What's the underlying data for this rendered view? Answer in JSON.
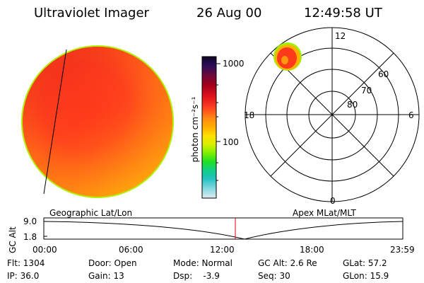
{
  "header": {
    "instrument": "Ultraviolet Imager",
    "date": "26 Aug 00",
    "time": "12:49:58 UT"
  },
  "colorbar": {
    "unit_label": "photon cm⁻²s⁻¹",
    "tick_labels": [
      "1000",
      "100"
    ],
    "gradient_colors": [
      "#0b0420",
      "#2b0b5a",
      "#6a0a3a",
      "#a0001a",
      "#e0101c",
      "#ff4020",
      "#ff8c10",
      "#ffb000",
      "#ffe000",
      "#d8f000",
      "#80f000",
      "#20e020",
      "#10d080",
      "#20c0c0",
      "#80d8e0",
      "#e0ecf0"
    ]
  },
  "polar_plot": {
    "mlt_labels": {
      "top": "12",
      "left": "18",
      "right": "6",
      "bottom": "0"
    },
    "lat_labels": [
      "60",
      "70",
      "80"
    ]
  },
  "timeline": {
    "left_title": "Geographic Lat/Lon",
    "right_title": "Apex MLat/MLT",
    "axis_label": "GC Alt",
    "y_ticks": [
      "9.0",
      "1.8"
    ],
    "x_ticks": [
      "00:00",
      "06:00",
      "12:00",
      "18:00",
      "23:59"
    ],
    "current_marker_color": "#e00000"
  },
  "info": {
    "row1": {
      "flt": "Flt: 1304",
      "door": "Door: Open",
      "mode": "Mode: Normal",
      "gcalt": "GC Alt: 2.6 Re",
      "glat": "GLat: 57.2"
    },
    "row2": {
      "ip": "IP: 36.0",
      "gain": "Gain: 13",
      "dsp": "Dsp:    -3.9",
      "seq": "Seq: 30",
      "glon": "GLon: 15.9"
    }
  }
}
